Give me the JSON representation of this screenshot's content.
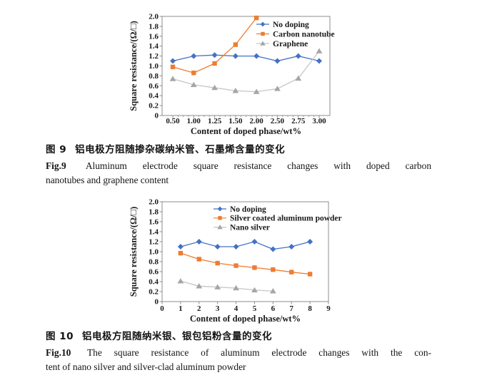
{
  "page": {
    "background": "#ffffff",
    "axis_color": "#8c8c8c",
    "text_color": "#1a1a1a"
  },
  "figure9": {
    "caption_cn": {
      "label": "图 9",
      "text": "铝电极方阻随掺杂碳纳米管、石墨烯含量的变化"
    },
    "caption_en": {
      "label": "Fig.9",
      "line1": "Aluminum electrode square resistance changes with doped carbon",
      "line2": "nanotubes and graphene content"
    }
  },
  "figure10": {
    "caption_cn": {
      "label": "图 10",
      "text": "铝电极方阻随纳米银、银包铝粉含量的变化"
    },
    "caption_en": {
      "label": "Fig.10",
      "line1": "The square resistance of aluminum electrode changes with the con-",
      "line2": "tent of nano silver and silver-clad aluminum powder"
    }
  },
  "chart_data": [
    {
      "id": "fig9",
      "type": "line",
      "title": "",
      "xlabel": "Content of doped phase/wt%",
      "ylabel": "Square resistance/(Ω/□)",
      "x_type": "category",
      "categories": [
        "0.50",
        "1.00",
        "1.25",
        "1.50",
        "2.00",
        "2.50",
        "2.75",
        "3.00"
      ],
      "ylim": [
        0,
        2.0
      ],
      "ytick_labels": [
        "0",
        "0.2",
        "0.4",
        "0.6",
        "0.8",
        "1.0",
        "1.2",
        "1.4",
        "1.6",
        "1.8",
        "2.0"
      ],
      "grid": false,
      "legend_position": "top-right-inside",
      "series": [
        {
          "name": "No doping",
          "marker": "diamond",
          "color": "#4472c4",
          "values": [
            1.1,
            1.2,
            1.22,
            1.2,
            1.2,
            1.1,
            1.2,
            1.1
          ]
        },
        {
          "name": "Carbon nanotube",
          "marker": "square",
          "color": "#ed7d31",
          "values": [
            0.98,
            0.86,
            1.05,
            1.43,
            1.97
          ]
        },
        {
          "name": "Graphene",
          "marker": "triangle",
          "color": "#a6a6a6",
          "line_color": "#c6c6c6",
          "values": [
            0.74,
            0.62,
            0.56,
            0.5,
            0.48,
            0.54,
            0.75,
            1.3
          ]
        }
      ]
    },
    {
      "id": "fig10",
      "type": "line",
      "title": "",
      "xlabel": "Content of doped phase/wt%",
      "ylabel": "Square resistance/(Ω/□)",
      "x_type": "linear",
      "xlim": [
        0,
        9
      ],
      "xticks": [
        0,
        1,
        2,
        3,
        4,
        5,
        6,
        7,
        8,
        9
      ],
      "ylim": [
        0,
        2.0
      ],
      "ytick_labels": [
        "0",
        "0.2",
        "0.4",
        "0.6",
        "0.8",
        "1.0",
        "1.2",
        "1.4",
        "1.6",
        "1.8",
        "2.0"
      ],
      "grid": false,
      "legend_position": "top-center-inside",
      "series": [
        {
          "name": "No doping",
          "marker": "diamond",
          "color": "#4472c4",
          "x": [
            1,
            2,
            3,
            4,
            5,
            6,
            7,
            8
          ],
          "values": [
            1.1,
            1.2,
            1.1,
            1.1,
            1.2,
            1.05,
            1.1,
            1.2
          ]
        },
        {
          "name": "Silver coated aluminum powder",
          "marker": "square",
          "color": "#ed7d31",
          "x": [
            1,
            2,
            3,
            4,
            5,
            6,
            7,
            8
          ],
          "values": [
            0.97,
            0.85,
            0.77,
            0.72,
            0.68,
            0.64,
            0.59,
            0.55
          ]
        },
        {
          "name": "Nano silver",
          "marker": "triangle",
          "color": "#a6a6a6",
          "line_color": "#c6c6c6",
          "x": [
            1,
            2,
            3,
            4,
            5,
            6
          ],
          "values": [
            0.41,
            0.31,
            0.29,
            0.27,
            0.23,
            0.21
          ]
        }
      ]
    }
  ]
}
